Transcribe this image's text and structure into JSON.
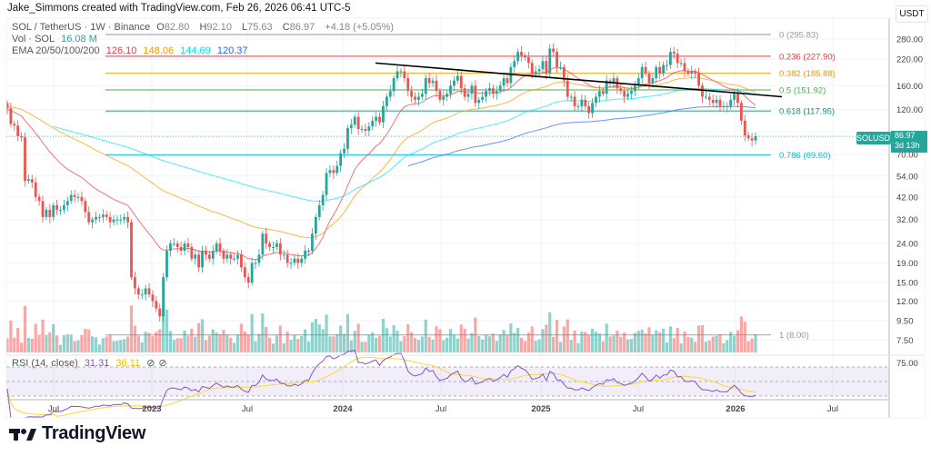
{
  "credit": "Jake_Simmons created with TradingView.com, Feb 26, 2026 06:41 UTC-5",
  "legend": {
    "symbol": "SOL / TetherUS · 1W · Binance",
    "o_label": "O",
    "o": "82.80",
    "h_label": "H",
    "h": "92.10",
    "l_label": "L",
    "l": "75.63",
    "c_label": "C",
    "c": "86.97",
    "change": "+4.18 (+5.05%)",
    "vol_label": "Vol · SOL",
    "vol": "16.08 M",
    "ema_label": "EMA 20/50/100/200",
    "ema20": "126.10",
    "ema50": "148.06",
    "ema100": "144.69",
    "ema200": "120.37",
    "rsi_label": "RSI (14, close)",
    "rsi": "31.31",
    "rsi_ma": "36.11"
  },
  "colors": {
    "up": "#26a69a",
    "down": "#ef5350",
    "ema20": "#f23645",
    "ema50": "#ff9800",
    "ema100": "#00e5ff",
    "ema200": "#2962ff",
    "rsi": "#7e57c2",
    "rsi_ma": "#fdd835"
  },
  "price_axis": {
    "currency": "USDT",
    "ticks": [
      "280.00",
      "220.00",
      "160.00",
      "120.00",
      "70.00",
      "54.00",
      "42.00",
      "32.00",
      "24.00",
      "19.00",
      "15.00",
      "12.00",
      "9.50",
      "7.50"
    ],
    "last_symbol": "SOLUSDT",
    "last_price": "86.97",
    "countdown": "3d 13h"
  },
  "rsi_axis": {
    "ticks": [
      "75.00"
    ]
  },
  "time_axis": {
    "ticks": [
      "Jul",
      "2023",
      "Jul",
      "2024",
      "Jul",
      "2025",
      "Jul",
      "2026",
      "Jul"
    ]
  },
  "fib_levels": [
    {
      "label": "0 (295.83)",
      "price": 295.83,
      "color": "#9598a1"
    },
    {
      "label": "0.236 (227.90)",
      "price": 227.9,
      "color": "#f23645"
    },
    {
      "label": "0.382 (185.88)",
      "price": 185.88,
      "color": "#ff9800"
    },
    {
      "label": "0.5 (151.92)",
      "price": 151.92,
      "color": "#4caf50"
    },
    {
      "label": "0.618 (117.95)",
      "price": 117.95,
      "color": "#089981"
    },
    {
      "label": "0.786 (69.60)",
      "price": 69.6,
      "color": "#00bcd4"
    },
    {
      "label": "1 (8.00)",
      "price": 8.0,
      "color": "#9598a1"
    }
  ],
  "logo": "TradingView",
  "chart_data": {
    "type": "candlestick",
    "symbol": "SOLUSDT",
    "interval": "1W",
    "scale": "log",
    "ylim": [
      7,
      300
    ],
    "x_range": [
      "2022-04",
      "2026-10"
    ],
    "grid": true,
    "indicators": [
      "EMA 20",
      "EMA 50",
      "EMA 100",
      "EMA 200",
      "Volume",
      "RSI 14"
    ],
    "first_open": 130,
    "weekly_closes": [
      122,
      101,
      99,
      87,
      86,
      51,
      52,
      50,
      42,
      40,
      33,
      36,
      33,
      38,
      36,
      36,
      38,
      40,
      43,
      42,
      42,
      40,
      35,
      31,
      32,
      33,
      33,
      34,
      33,
      31,
      32,
      32,
      32,
      33,
      31,
      16,
      14,
      13,
      13,
      14,
      13,
      12,
      11,
      10,
      16,
      22,
      24,
      24,
      23,
      22,
      24,
      23,
      20,
      21,
      18,
      22,
      21,
      20,
      22,
      24,
      22,
      20,
      21,
      20,
      20,
      21,
      18,
      16,
      15,
      19,
      19,
      21,
      27,
      24,
      23,
      23,
      24,
      21,
      21,
      19,
      19,
      20,
      19,
      20,
      22,
      22,
      27,
      33,
      38,
      43,
      56,
      58,
      56,
      61,
      71,
      75,
      96,
      100,
      110,
      95,
      95,
      93,
      98,
      105,
      110,
      103,
      125,
      140,
      150,
      175,
      190,
      190,
      175,
      150,
      140,
      135,
      140,
      145,
      175,
      165,
      170,
      150,
      135,
      140,
      145,
      160,
      170,
      180,
      155,
      140,
      145,
      160,
      130,
      135,
      140,
      150,
      155,
      145,
      150,
      160,
      175,
      165,
      200,
      215,
      240,
      230,
      225,
      210,
      185,
      190,
      195,
      215,
      185,
      250,
      240,
      200,
      200,
      170,
      140,
      140,
      125,
      125,
      135,
      125,
      115,
      130,
      140,
      150,
      145,
      170,
      165,
      175,
      155,
      150,
      140,
      145,
      150,
      160,
      175,
      200,
      185,
      165,
      175,
      200,
      185,
      205,
      205,
      240,
      235,
      210,
      210,
      190,
      185,
      190,
      185,
      160,
      140,
      140,
      135,
      130,
      135,
      125,
      125,
      125,
      135,
      145,
      130,
      105,
      88,
      85,
      82.8,
      86.97
    ],
    "trendline": {
      "from_price": 210,
      "to_price": 140,
      "color": "#000000"
    }
  }
}
